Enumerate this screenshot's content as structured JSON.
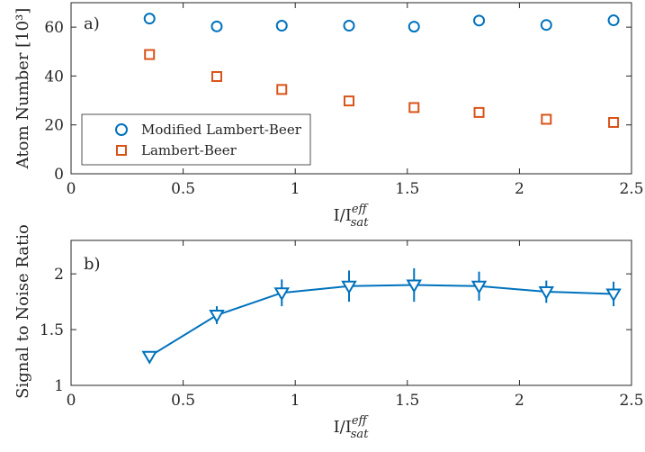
{
  "chart_data": [
    {
      "type": "scatter",
      "panel_label": "a)",
      "x_label_main": "I/I",
      "x_label_sup": "eff",
      "x_label_sub": "sat",
      "ylabel": "Atom Number [10³]",
      "xlim": [
        0,
        2.5
      ],
      "ylim": [
        0,
        70
      ],
      "x_ticks": [
        0,
        0.5,
        1,
        1.5,
        2,
        2.5
      ],
      "x_tick_labels": [
        "0",
        "0.5",
        "1",
        "1.5",
        "2",
        "2.5"
      ],
      "y_ticks": [
        0,
        20,
        40,
        60
      ],
      "y_tick_labels": [
        "0",
        "20",
        "40",
        "60"
      ],
      "legend_position": "bottom-left",
      "series": [
        {
          "name": "Modified Lambert-Beer",
          "marker": "circle",
          "color": "#0072BD",
          "x": [
            0.35,
            0.65,
            0.94,
            1.24,
            1.53,
            1.82,
            2.12,
            2.42
          ],
          "y": [
            63.5,
            60.3,
            60.6,
            60.6,
            60.2,
            62.7,
            60.9,
            62.8
          ]
        },
        {
          "name": "Lambert-Beer",
          "marker": "square",
          "color": "#D95319",
          "x": [
            0.35,
            0.65,
            0.94,
            1.24,
            1.53,
            1.82,
            2.12,
            2.42
          ],
          "y": [
            48.8,
            39.8,
            34.5,
            29.8,
            27.1,
            25.1,
            22.3,
            21.0
          ]
        }
      ]
    },
    {
      "type": "line",
      "panel_label": "b)",
      "x_label_main": "I/I",
      "x_label_sup": "eff",
      "x_label_sub": "sat",
      "ylabel": "Signal to Noise Ratio",
      "xlim": [
        0,
        2.5
      ],
      "ylim": [
        1,
        2.3
      ],
      "x_ticks": [
        0,
        0.5,
        1,
        1.5,
        2,
        2.5
      ],
      "x_tick_labels": [
        "0",
        "0.5",
        "1",
        "1.5",
        "2",
        "2.5"
      ],
      "y_ticks": [
        1,
        1.5,
        2
      ],
      "y_tick_labels": [
        "1",
        "1.5",
        "2"
      ],
      "series": [
        {
          "marker": "triangle-down",
          "color": "#0072BD",
          "x": [
            0.35,
            0.65,
            0.94,
            1.24,
            1.53,
            1.82,
            2.12,
            2.42
          ],
          "y": [
            1.26,
            1.63,
            1.83,
            1.89,
            1.9,
            1.89,
            1.84,
            1.82
          ],
          "error": [
            0.03,
            0.08,
            0.12,
            0.14,
            0.15,
            0.13,
            0.1,
            0.11
          ]
        }
      ]
    }
  ]
}
